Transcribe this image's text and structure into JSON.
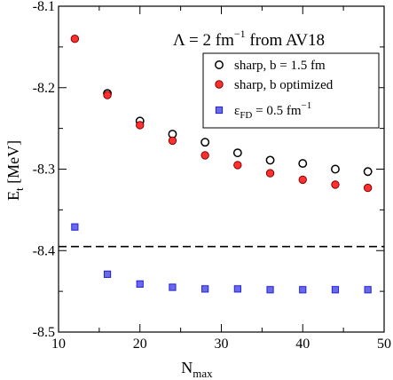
{
  "chart_data": {
    "type": "scatter",
    "title": "",
    "annotation": {
      "prefix": "Λ = 2 fm",
      "exponent": "−1",
      "suffix": " from AV18"
    },
    "xlabel": {
      "main": "N",
      "sub": "max"
    },
    "ylabel": {
      "main": "E",
      "sub": "t",
      "rest": " [MeV]"
    },
    "xlim": [
      10,
      50
    ],
    "ylim": [
      -8.5,
      -8.1
    ],
    "xticks": [
      10,
      20,
      30,
      40,
      50
    ],
    "xtick_labels": [
      "10",
      "20",
      "30",
      "40",
      "50"
    ],
    "yticks": [
      -8.5,
      -8.4,
      -8.3,
      -8.2,
      -8.1
    ],
    "ytick_labels": [
      "-8.5",
      "-8.4",
      "-8.3",
      "-8.2",
      "-8.1"
    ],
    "grid": false,
    "legend_position": "top-right",
    "reference_line": {
      "y": -8.395,
      "style": "dashed"
    },
    "series": [
      {
        "name": "sharp, b = 1.5 fm",
        "marker": "open-circle",
        "color": "#000000",
        "x": [
          16,
          20,
          24,
          28,
          32,
          36,
          40,
          44,
          48
        ],
        "y": [
          -8.207,
          -8.241,
          -8.257,
          -8.267,
          -8.28,
          -8.289,
          -8.293,
          -8.3,
          -8.303
        ]
      },
      {
        "name": "sharp, b optimized",
        "marker": "filled-circle",
        "color": "#ff3030",
        "x": [
          12,
          16,
          20,
          24,
          28,
          32,
          36,
          40,
          44,
          48
        ],
        "y": [
          -8.14,
          -8.209,
          -8.246,
          -8.265,
          -8.283,
          -8.295,
          -8.305,
          -8.313,
          -8.319,
          -8.323
        ]
      },
      {
        "name_main": "ε",
        "name_sub": "FD",
        "name_rest": " = 0.5 fm",
        "name_sup": "−1",
        "marker": "square",
        "color": "#2020e0",
        "x": [
          12,
          16,
          20,
          24,
          28,
          32,
          36,
          40,
          44,
          48
        ],
        "y": [
          -8.371,
          -8.429,
          -8.441,
          -8.445,
          -8.447,
          -8.447,
          -8.448,
          -8.448,
          -8.448,
          -8.448
        ]
      }
    ]
  }
}
